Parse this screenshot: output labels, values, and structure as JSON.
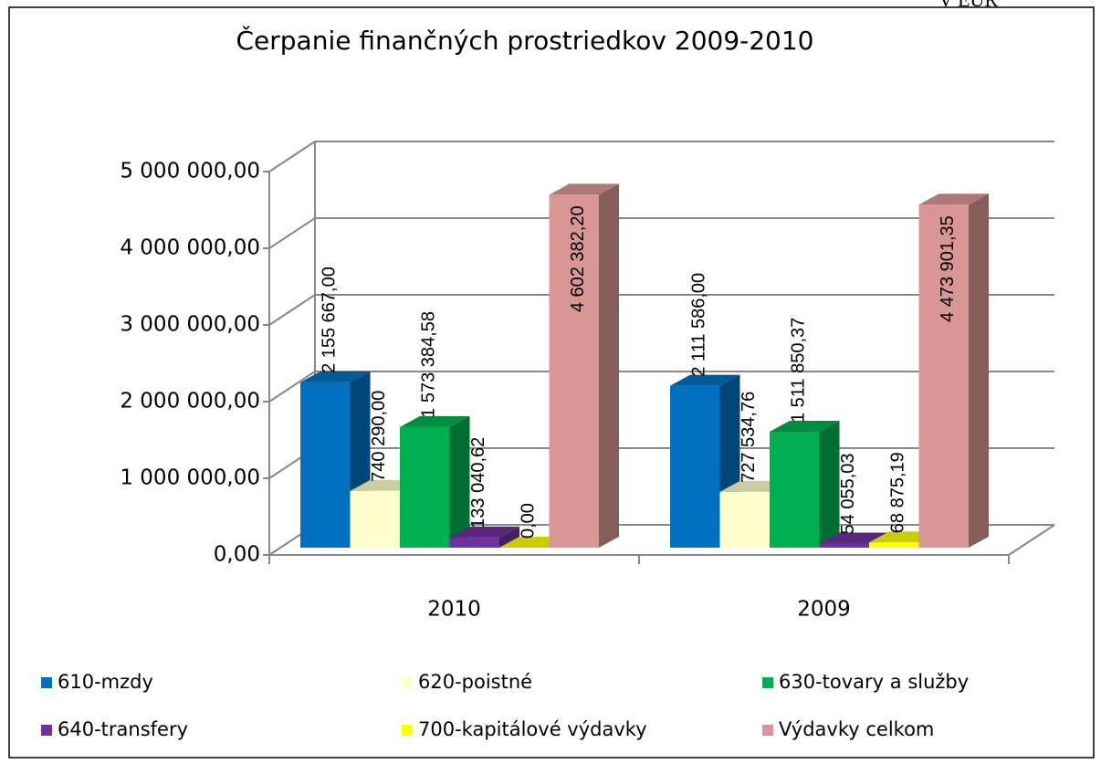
{
  "unit": "V EUR",
  "chart_data": {
    "type": "bar3d",
    "title": "Čerpanie finančných prostriedkov 2009-2010",
    "categories": [
      "2010",
      "2009"
    ],
    "series": [
      {
        "name": "610-mzdy",
        "color": "#0070c0",
        "values": [
          2155667.0,
          2111586.0
        ],
        "value_labels": [
          "2 155 667,00",
          "2 111 586,00"
        ]
      },
      {
        "name": "620-poistné",
        "color": "#ffffcc",
        "values": [
          740290.0,
          727534.76
        ],
        "value_labels": [
          "740 290,00",
          "727 534,76"
        ]
      },
      {
        "name": "630-tovary a služby",
        "color": "#00b050",
        "values": [
          1573384.58,
          1511850.37
        ],
        "value_labels": [
          "1 573 384,58",
          "1 511 850,37"
        ]
      },
      {
        "name": "640-transfery",
        "color": "#7030a0",
        "values": [
          133040.62,
          54055.03
        ],
        "value_labels": [
          "133 040,62",
          "54 055,03"
        ]
      },
      {
        "name": "700-kapitálové výdavky",
        "color": "#ffff00",
        "values": [
          0.0,
          68875.19
        ],
        "value_labels": [
          "0,00",
          "68 875,19"
        ]
      },
      {
        "name": "Výdavky celkom",
        "color": "#d99694",
        "values": [
          4602382.2,
          4473901.35
        ],
        "value_labels": [
          "4 602 382,20",
          "4 473 901,35"
        ]
      }
    ],
    "ylim": [
      0,
      5000000
    ],
    "yticks": [
      {
        "value": 0,
        "label": "0,00"
      },
      {
        "value": 1000000,
        "label": "1 000 000,00"
      },
      {
        "value": 2000000,
        "label": "2 000 000,00"
      },
      {
        "value": 3000000,
        "label": "3 000 000,00"
      },
      {
        "value": 4000000,
        "label": "4 000 000,00"
      },
      {
        "value": 5000000,
        "label": "5 000 000,00"
      }
    ],
    "grid": true,
    "legend": "bottom"
  }
}
